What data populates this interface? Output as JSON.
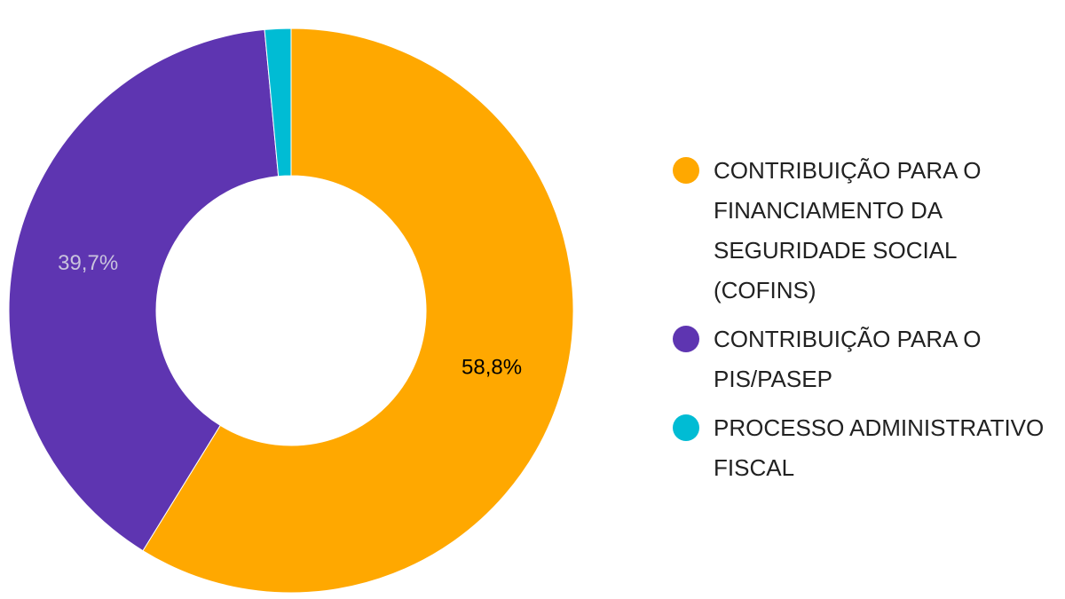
{
  "chart_data": {
    "type": "pie",
    "donut": true,
    "title": "",
    "legend_position": "right",
    "series": [
      {
        "name": "CONTRIBUIÇÃO PARA O FINANCIAMENTO DA SEGURIDADE SOCIAL (COFINS)",
        "value": 58.8,
        "label": "58,8%",
        "color": "#FFA800",
        "label_color": "#000000"
      },
      {
        "name": "CONTRIBUIÇÃO PARA O PIS/PASEP",
        "value": 39.7,
        "label": "39,7%",
        "color": "#5E35B1",
        "label_color": "#C9C3DD"
      },
      {
        "name": "PROCESSO ADMINISTRATIVO FISCAL",
        "value": 1.5,
        "label": "",
        "color": "#00BCD4",
        "label_color": "#FFFFFF"
      }
    ]
  }
}
